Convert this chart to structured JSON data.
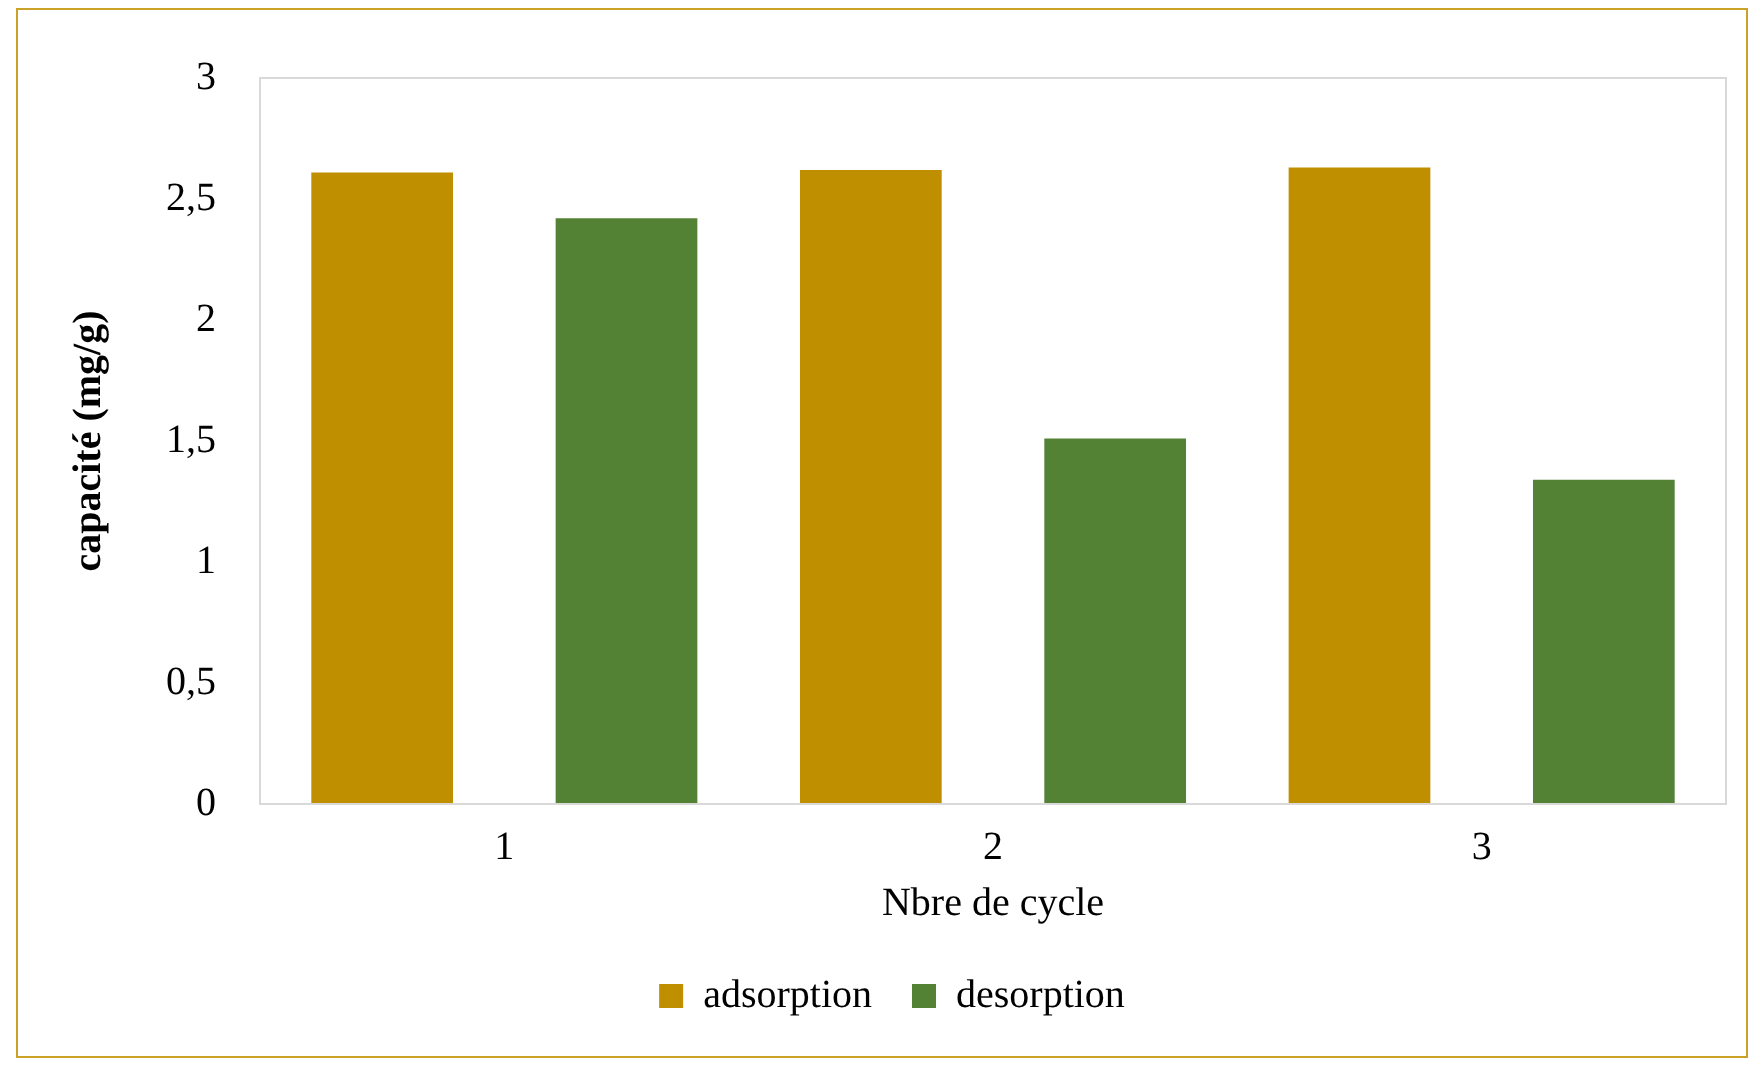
{
  "chart_data": {
    "type": "bar",
    "xlabel": "Nbre de cycle",
    "ylabel": "capacité (mg/g)",
    "categories": [
      "1",
      "2",
      "3"
    ],
    "series": [
      {
        "name": "adsorption",
        "color": "#bf8f00",
        "values": [
          2.61,
          2.62,
          2.63
        ]
      },
      {
        "name": "desorption",
        "color": "#548235",
        "values": [
          2.42,
          1.51,
          1.34
        ]
      }
    ],
    "ylim": [
      0,
      3
    ],
    "yticks": [
      0,
      {
        "value": 0.5,
        "label": "0,5"
      },
      1,
      {
        "value": 1.5,
        "label": "1,5"
      },
      2,
      {
        "value": 2.5,
        "label": "2,5"
      },
      3
    ],
    "grid": false,
    "legend": "bottom"
  }
}
